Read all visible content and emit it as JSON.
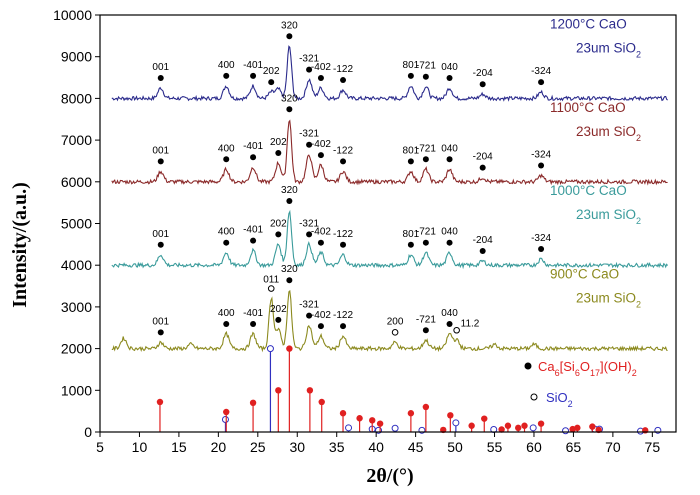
{
  "chart_data": {
    "type": "line",
    "xlabel": "2θ/(°)",
    "ylabel": "Intensity/(a.u.)",
    "xlim": [
      5,
      78
    ],
    "ylim": [
      0,
      10000
    ],
    "xticks": [
      5,
      10,
      15,
      20,
      25,
      30,
      35,
      40,
      45,
      50,
      55,
      60,
      65,
      70,
      75
    ],
    "yticks": [
      0,
      1000,
      2000,
      3000,
      4000,
      5000,
      6000,
      7000,
      8000,
      9000,
      10000
    ],
    "series": [
      {
        "name": "1200",
        "temp": "1200°C CaO",
        "sio2": "23um SiO",
        "sio2_sub": "2",
        "color": "#2b2b8c",
        "baseline": 8000,
        "peaks": [
          {
            "x": 12.7,
            "h": 250,
            "label": "001"
          },
          {
            "x": 21.0,
            "h": 300,
            "label": "400"
          },
          {
            "x": 24.4,
            "h": 300,
            "label": "-401"
          },
          {
            "x": 26.7,
            "h": 150,
            "label": "202"
          },
          {
            "x": 27.6,
            "h": 220,
            "label": ""
          },
          {
            "x": 29.0,
            "h": 1250,
            "label": "320"
          },
          {
            "x": 31.5,
            "h": 450,
            "label": "-321"
          },
          {
            "x": 33.0,
            "h": 250,
            "label": "-402"
          },
          {
            "x": 35.8,
            "h": 200,
            "label": "-122"
          },
          {
            "x": 44.4,
            "h": 300,
            "label": "801"
          },
          {
            "x": 46.3,
            "h": 280,
            "label": "-721"
          },
          {
            "x": 49.3,
            "h": 250,
            "label": "040"
          },
          {
            "x": 53.5,
            "h": 100,
            "label": "-204"
          },
          {
            "x": 60.9,
            "h": 150,
            "label": "-324"
          }
        ]
      },
      {
        "name": "1100",
        "temp": "1100°C CaO",
        "sio2": "23um SiO",
        "sio2_sub": "2",
        "color": "#8b2a2a",
        "baseline": 6000,
        "peaks": [
          {
            "x": 12.7,
            "h": 250,
            "label": "001"
          },
          {
            "x": 21.0,
            "h": 300,
            "label": "400"
          },
          {
            "x": 24.4,
            "h": 350,
            "label": "-401"
          },
          {
            "x": 27.6,
            "h": 450,
            "label": "202"
          },
          {
            "x": 29.0,
            "h": 1500,
            "label": "320"
          },
          {
            "x": 31.5,
            "h": 650,
            "label": "-321"
          },
          {
            "x": 33.0,
            "h": 400,
            "label": "-402"
          },
          {
            "x": 35.8,
            "h": 250,
            "label": "-122"
          },
          {
            "x": 44.4,
            "h": 250,
            "label": "801"
          },
          {
            "x": 46.3,
            "h": 300,
            "label": "-721"
          },
          {
            "x": 49.3,
            "h": 300,
            "label": "040"
          },
          {
            "x": 53.5,
            "h": 100,
            "label": "-204"
          },
          {
            "x": 60.9,
            "h": 150,
            "label": "-324"
          }
        ]
      },
      {
        "name": "1000",
        "temp": "1000°C CaO",
        "sio2": "23um SiO",
        "sio2_sub": "2",
        "color": "#3a9b9b",
        "baseline": 4000,
        "peaks": [
          {
            "x": 12.7,
            "h": 250,
            "label": "001"
          },
          {
            "x": 21.0,
            "h": 300,
            "label": "400"
          },
          {
            "x": 24.4,
            "h": 350,
            "label": "-401"
          },
          {
            "x": 27.6,
            "h": 500,
            "label": "202"
          },
          {
            "x": 29.0,
            "h": 1300,
            "label": "320"
          },
          {
            "x": 31.5,
            "h": 500,
            "label": "-321"
          },
          {
            "x": 33.0,
            "h": 300,
            "label": "-402"
          },
          {
            "x": 35.8,
            "h": 250,
            "label": "-122"
          },
          {
            "x": 44.4,
            "h": 250,
            "label": "801"
          },
          {
            "x": 46.3,
            "h": 300,
            "label": "-721"
          },
          {
            "x": 49.3,
            "h": 300,
            "label": "040"
          },
          {
            "x": 53.5,
            "h": 100,
            "label": "-204"
          },
          {
            "x": 60.9,
            "h": 150,
            "label": "-324"
          }
        ]
      },
      {
        "name": "900",
        "temp": "900°C CaO",
        "sio2": "23um SiO",
        "sio2_sub": "2",
        "color": "#8c8a1f",
        "baseline": 2000,
        "peaks": [
          {
            "x": 8.0,
            "h": 250,
            "label": ""
          },
          {
            "x": 12.7,
            "h": 150,
            "label": "001"
          },
          {
            "x": 16.5,
            "h": 100,
            "label": ""
          },
          {
            "x": 21.0,
            "h": 350,
            "label": "400"
          },
          {
            "x": 24.4,
            "h": 350,
            "label": "-401"
          },
          {
            "x": 26.7,
            "h": 1200,
            "label": "011",
            "marker": "open"
          },
          {
            "x": 27.6,
            "h": 450,
            "label": "202"
          },
          {
            "x": 29.0,
            "h": 1400,
            "label": "320"
          },
          {
            "x": 31.5,
            "h": 550,
            "label": "-321"
          },
          {
            "x": 33.0,
            "h": 300,
            "label": "-402"
          },
          {
            "x": 35.8,
            "h": 300,
            "label": "-122"
          },
          {
            "x": 42.4,
            "h": 150,
            "label": "200",
            "marker": "open"
          },
          {
            "x": 46.3,
            "h": 200,
            "label": "-721"
          },
          {
            "x": 49.3,
            "h": 350,
            "label": "040"
          },
          {
            "x": 50.2,
            "h": 200,
            "label": "11.2",
            "marker": "open"
          },
          {
            "x": 55.0,
            "h": 100,
            "label": ""
          },
          {
            "x": 60.0,
            "h": 100,
            "label": ""
          }
        ]
      }
    ],
    "reference_cah": {
      "label": "Ca",
      "formula_parts": [
        "6",
        "[Si",
        "6",
        "O",
        "17",
        "](OH)",
        "2"
      ],
      "color": "#e02020",
      "lines": [
        {
          "x": 12.6,
          "y": 720
        },
        {
          "x": 21.0,
          "y": 480
        },
        {
          "x": 24.4,
          "y": 700
        },
        {
          "x": 27.6,
          "y": 1000
        },
        {
          "x": 29.0,
          "y": 2000
        },
        {
          "x": 31.6,
          "y": 1000
        },
        {
          "x": 33.1,
          "y": 720
        },
        {
          "x": 35.8,
          "y": 450
        },
        {
          "x": 37.9,
          "y": 330
        },
        {
          "x": 39.5,
          "y": 280
        },
        {
          "x": 40.5,
          "y": 200
        },
        {
          "x": 44.4,
          "y": 450
        },
        {
          "x": 46.3,
          "y": 600
        },
        {
          "x": 48.5,
          "y": 50
        },
        {
          "x": 49.4,
          "y": 400
        },
        {
          "x": 52.1,
          "y": 150
        },
        {
          "x": 53.7,
          "y": 320
        },
        {
          "x": 55.9,
          "y": 60
        },
        {
          "x": 56.7,
          "y": 150
        },
        {
          "x": 58.0,
          "y": 100
        },
        {
          "x": 58.8,
          "y": 150
        },
        {
          "x": 60.9,
          "y": 200
        },
        {
          "x": 64.9,
          "y": 70
        },
        {
          "x": 65.5,
          "y": 100
        },
        {
          "x": 67.4,
          "y": 130
        },
        {
          "x": 68.2,
          "y": 50
        },
        {
          "x": 74.1,
          "y": 40
        }
      ]
    },
    "reference_sio2": {
      "label": "SiO",
      "label_sub": "2",
      "color": "#3030c0",
      "lines": [
        {
          "x": 20.9,
          "y": 300
        },
        {
          "x": 26.6,
          "y": 2000
        },
        {
          "x": 36.5,
          "y": 100
        },
        {
          "x": 39.5,
          "y": 70
        },
        {
          "x": 40.3,
          "y": 40
        },
        {
          "x": 42.4,
          "y": 90
        },
        {
          "x": 45.8,
          "y": 40
        },
        {
          "x": 50.1,
          "y": 220
        },
        {
          "x": 54.9,
          "y": 60
        },
        {
          "x": 59.9,
          "y": 100
        },
        {
          "x": 64.0,
          "y": 30
        },
        {
          "x": 67.7,
          "y": 70
        },
        {
          "x": 68.3,
          "y": 70
        },
        {
          "x": 73.5,
          "y": 20
        },
        {
          "x": 75.7,
          "y": 40
        }
      ]
    }
  }
}
